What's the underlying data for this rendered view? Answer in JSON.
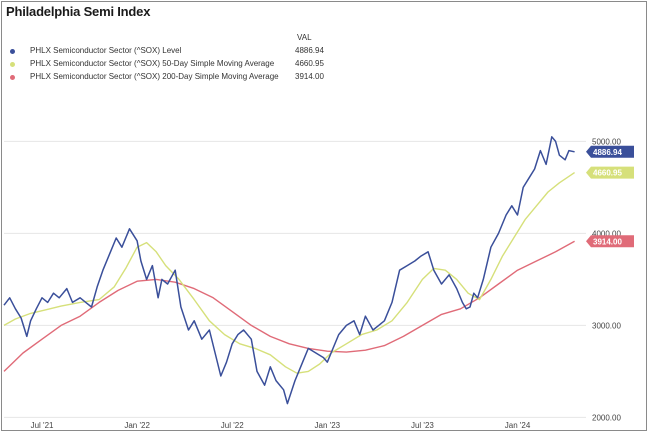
{
  "title": "Philadelphia Semi Index",
  "legend": {
    "header": "VAL",
    "items": [
      {
        "label": "PHLX Semiconductor Sector (^SOX) Level",
        "value": "4886.94",
        "color": "#3a4f9a"
      },
      {
        "label": "PHLX Semiconductor Sector (^SOX) 50-Day Simple Moving Average",
        "value": "4660.95",
        "color": "#d6e07a"
      },
      {
        "label": "PHLX Semiconductor Sector (^SOX) 200-Day Simple Moving Average",
        "value": "3914.00",
        "color": "#e06b78"
      }
    ]
  },
  "chart_data": {
    "type": "line",
    "title": "Philadelphia Semi Index",
    "x_unit": "year",
    "xlim": [
      2021.3,
      2024.36
    ],
    "ylim": [
      1950,
      5450
    ],
    "x_ticks": [
      {
        "x": 2021.5,
        "label": "Jul '21"
      },
      {
        "x": 2022.0,
        "label": "Jan '22"
      },
      {
        "x": 2022.5,
        "label": "Jul '22"
      },
      {
        "x": 2023.0,
        "label": "Jan '23"
      },
      {
        "x": 2023.5,
        "label": "Jul '23"
      },
      {
        "x": 2024.0,
        "label": "Jan '24"
      }
    ],
    "y_ticks": [
      {
        "y": 2000,
        "label": "2000.00"
      },
      {
        "y": 3000,
        "label": "3000.00"
      },
      {
        "y": 4000,
        "label": "4000.00"
      },
      {
        "y": 5000,
        "label": "5000.00"
      }
    ],
    "gridlines": "horizontal",
    "legend_position": "top-left",
    "series": [
      {
        "name": "PHLX Semiconductor Sector (^SOX) Level",
        "color": "#3a4f9a",
        "end_label": "4886.94",
        "points": [
          [
            2021.3,
            3220
          ],
          [
            2021.33,
            3300
          ],
          [
            2021.36,
            3180
          ],
          [
            2021.39,
            3080
          ],
          [
            2021.42,
            2880
          ],
          [
            2021.44,
            3050
          ],
          [
            2021.47,
            3180
          ],
          [
            2021.5,
            3300
          ],
          [
            2021.53,
            3250
          ],
          [
            2021.56,
            3350
          ],
          [
            2021.59,
            3300
          ],
          [
            2021.63,
            3400
          ],
          [
            2021.66,
            3250
          ],
          [
            2021.7,
            3300
          ],
          [
            2021.73,
            3250
          ],
          [
            2021.76,
            3200
          ],
          [
            2021.79,
            3420
          ],
          [
            2021.82,
            3600
          ],
          [
            2021.86,
            3800
          ],
          [
            2021.89,
            3950
          ],
          [
            2021.92,
            3850
          ],
          [
            2021.96,
            4050
          ],
          [
            2022.0,
            3920
          ],
          [
            2022.02,
            3700
          ],
          [
            2022.05,
            3500
          ],
          [
            2022.08,
            3650
          ],
          [
            2022.11,
            3300
          ],
          [
            2022.13,
            3500
          ],
          [
            2022.16,
            3450
          ],
          [
            2022.2,
            3600
          ],
          [
            2022.23,
            3200
          ],
          [
            2022.27,
            2950
          ],
          [
            2022.3,
            3050
          ],
          [
            2022.34,
            2850
          ],
          [
            2022.38,
            2950
          ],
          [
            2022.41,
            2700
          ],
          [
            2022.44,
            2450
          ],
          [
            2022.47,
            2600
          ],
          [
            2022.5,
            2800
          ],
          [
            2022.53,
            2900
          ],
          [
            2022.56,
            2950
          ],
          [
            2022.6,
            2850
          ],
          [
            2022.63,
            2500
          ],
          [
            2022.67,
            2350
          ],
          [
            2022.7,
            2550
          ],
          [
            2022.73,
            2400
          ],
          [
            2022.77,
            2300
          ],
          [
            2022.79,
            2150
          ],
          [
            2022.83,
            2400
          ],
          [
            2022.87,
            2600
          ],
          [
            2022.9,
            2750
          ],
          [
            2022.94,
            2700
          ],
          [
            2022.98,
            2650
          ],
          [
            2023.0,
            2600
          ],
          [
            2023.03,
            2750
          ],
          [
            2023.06,
            2900
          ],
          [
            2023.1,
            3000
          ],
          [
            2023.14,
            3050
          ],
          [
            2023.17,
            2900
          ],
          [
            2023.2,
            3100
          ],
          [
            2023.24,
            2950
          ],
          [
            2023.27,
            3000
          ],
          [
            2023.3,
            3050
          ],
          [
            2023.34,
            3250
          ],
          [
            2023.38,
            3600
          ],
          [
            2023.42,
            3650
          ],
          [
            2023.46,
            3700
          ],
          [
            2023.49,
            3750
          ],
          [
            2023.53,
            3800
          ],
          [
            2023.56,
            3600
          ],
          [
            2023.6,
            3450
          ],
          [
            2023.64,
            3550
          ],
          [
            2023.68,
            3400
          ],
          [
            2023.71,
            3250
          ],
          [
            2023.73,
            3180
          ],
          [
            2023.75,
            3200
          ],
          [
            2023.77,
            3350
          ],
          [
            2023.79,
            3300
          ],
          [
            2023.82,
            3500
          ],
          [
            2023.86,
            3850
          ],
          [
            2023.9,
            4000
          ],
          [
            2023.94,
            4200
          ],
          [
            2023.97,
            4300
          ],
          [
            2024.0,
            4200
          ],
          [
            2024.03,
            4500
          ],
          [
            2024.06,
            4600
          ],
          [
            2024.09,
            4700
          ],
          [
            2024.12,
            4900
          ],
          [
            2024.15,
            4750
          ],
          [
            2024.18,
            5050
          ],
          [
            2024.2,
            5000
          ],
          [
            2024.22,
            4850
          ],
          [
            2024.25,
            4800
          ],
          [
            2024.27,
            4900
          ],
          [
            2024.3,
            4887
          ]
        ]
      },
      {
        "name": "PHLX Semiconductor Sector (^SOX) 50-Day Simple Moving Average",
        "color": "#d6e07a",
        "end_label": "4660.95",
        "points": [
          [
            2021.3,
            3000
          ],
          [
            2021.36,
            3070
          ],
          [
            2021.44,
            3130
          ],
          [
            2021.52,
            3170
          ],
          [
            2021.6,
            3210
          ],
          [
            2021.7,
            3250
          ],
          [
            2021.8,
            3280
          ],
          [
            2021.88,
            3420
          ],
          [
            2021.94,
            3620
          ],
          [
            2022.0,
            3850
          ],
          [
            2022.05,
            3900
          ],
          [
            2022.1,
            3800
          ],
          [
            2022.15,
            3650
          ],
          [
            2022.22,
            3500
          ],
          [
            2022.3,
            3280
          ],
          [
            2022.38,
            3050
          ],
          [
            2022.46,
            2900
          ],
          [
            2022.54,
            2800
          ],
          [
            2022.62,
            2750
          ],
          [
            2022.7,
            2680
          ],
          [
            2022.78,
            2550
          ],
          [
            2022.84,
            2480
          ],
          [
            2022.9,
            2500
          ],
          [
            2022.96,
            2580
          ],
          [
            2023.02,
            2700
          ],
          [
            2023.1,
            2800
          ],
          [
            2023.18,
            2900
          ],
          [
            2023.26,
            2950
          ],
          [
            2023.34,
            3050
          ],
          [
            2023.42,
            3250
          ],
          [
            2023.5,
            3500
          ],
          [
            2023.56,
            3620
          ],
          [
            2023.62,
            3600
          ],
          [
            2023.68,
            3500
          ],
          [
            2023.74,
            3350
          ],
          [
            2023.8,
            3280
          ],
          [
            2023.86,
            3500
          ],
          [
            2023.92,
            3750
          ],
          [
            2023.98,
            3950
          ],
          [
            2024.04,
            4150
          ],
          [
            2024.1,
            4300
          ],
          [
            2024.16,
            4450
          ],
          [
            2024.22,
            4550
          ],
          [
            2024.3,
            4661
          ]
        ]
      },
      {
        "name": "PHLX Semiconductor Sector (^SOX) 200-Day Simple Moving Average",
        "color": "#e06b78",
        "end_label": "3914.00",
        "points": [
          [
            2021.3,
            2500
          ],
          [
            2021.4,
            2700
          ],
          [
            2021.5,
            2850
          ],
          [
            2021.6,
            3000
          ],
          [
            2021.7,
            3100
          ],
          [
            2021.8,
            3250
          ],
          [
            2021.9,
            3380
          ],
          [
            2022.0,
            3480
          ],
          [
            2022.1,
            3500
          ],
          [
            2022.2,
            3470
          ],
          [
            2022.3,
            3400
          ],
          [
            2022.4,
            3300
          ],
          [
            2022.5,
            3150
          ],
          [
            2022.6,
            3000
          ],
          [
            2022.7,
            2880
          ],
          [
            2022.8,
            2800
          ],
          [
            2022.9,
            2750
          ],
          [
            2023.0,
            2720
          ],
          [
            2023.1,
            2710
          ],
          [
            2023.2,
            2730
          ],
          [
            2023.3,
            2780
          ],
          [
            2023.4,
            2880
          ],
          [
            2023.5,
            3000
          ],
          [
            2023.6,
            3120
          ],
          [
            2023.7,
            3180
          ],
          [
            2023.8,
            3300
          ],
          [
            2023.9,
            3450
          ],
          [
            2024.0,
            3600
          ],
          [
            2024.1,
            3700
          ],
          [
            2024.2,
            3800
          ],
          [
            2024.3,
            3914
          ]
        ]
      }
    ]
  }
}
